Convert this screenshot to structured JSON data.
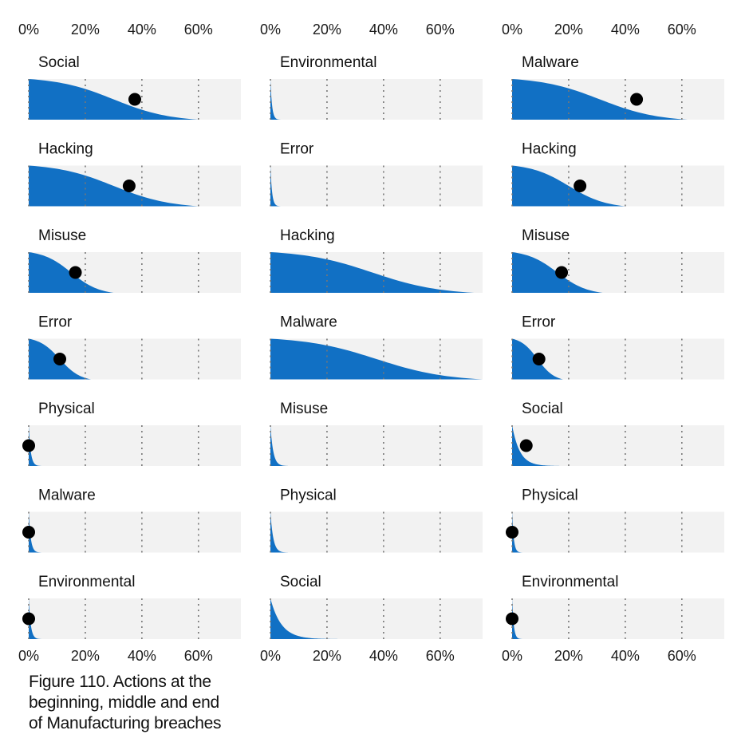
{
  "caption": {
    "lines": [
      "Figure 110. Actions at the",
      "beginning, middle and end",
      "of Manufacturing breaches"
    ]
  },
  "colors": {
    "fill": "#1170c4",
    "track": "#f2f2f2",
    "marker": "#000000",
    "grid": "#777777"
  },
  "chart_data": [
    {
      "type": "area",
      "group": "beginning",
      "x_ticks": [
        "0%",
        "20%",
        "40%",
        "60%"
      ],
      "xlim": [
        0,
        0.75
      ],
      "grid": "dotted vertical at 0%, 20%, 40%, 60%",
      "panels": [
        {
          "label": "Social",
          "shape": "plateau",
          "range_high": 0.6,
          "marker": 0.375
        },
        {
          "label": "Hacking",
          "shape": "plateau",
          "range_high": 0.6,
          "marker": 0.355
        },
        {
          "label": "Misuse",
          "shape": "plateau",
          "range_high": 0.3,
          "marker": 0.165
        },
        {
          "label": "Error",
          "shape": "plateau",
          "range_high": 0.22,
          "marker": 0.11
        },
        {
          "label": "Physical",
          "shape": "decay",
          "range_high": 0.05,
          "marker": 0.0
        },
        {
          "label": "Malware",
          "shape": "decay",
          "range_high": 0.05,
          "marker": 0.0
        },
        {
          "label": "Environmental",
          "shape": "decay",
          "range_high": 0.05,
          "marker": 0.0
        }
      ]
    },
    {
      "type": "area",
      "group": "middle",
      "x_ticks": [
        "0%",
        "20%",
        "40%",
        "60%"
      ],
      "xlim": [
        0,
        0.75
      ],
      "grid": "dotted vertical at 0%, 20%, 40%, 60%",
      "panels": [
        {
          "label": "Environmental",
          "shape": "decay",
          "range_high": 0.04,
          "marker": null
        },
        {
          "label": "Error",
          "shape": "decay",
          "range_high": 0.04,
          "marker": null
        },
        {
          "label": "Hacking",
          "shape": "plateau",
          "range_high": 0.72,
          "marker": null
        },
        {
          "label": "Malware",
          "shape": "plateau",
          "range_high": 0.75,
          "marker": null
        },
        {
          "label": "Misuse",
          "shape": "decay",
          "range_high": 0.07,
          "marker": null
        },
        {
          "label": "Physical",
          "shape": "decay",
          "range_high": 0.07,
          "marker": null
        },
        {
          "label": "Social",
          "shape": "decay",
          "range_high": 0.27,
          "marker": null
        }
      ]
    },
    {
      "type": "area",
      "group": "end",
      "x_ticks": [
        "0%",
        "20%",
        "40%",
        "60%"
      ],
      "xlim": [
        0,
        0.75
      ],
      "grid": "dotted vertical at 0%, 20%, 40%, 60%",
      "panels": [
        {
          "label": "Malware",
          "shape": "plateau",
          "range_high": 0.62,
          "marker": 0.44
        },
        {
          "label": "Hacking",
          "shape": "plateau",
          "range_high": 0.4,
          "marker": 0.24
        },
        {
          "label": "Misuse",
          "shape": "plateau",
          "range_high": 0.32,
          "marker": 0.175
        },
        {
          "label": "Error",
          "shape": "plateau",
          "range_high": 0.18,
          "marker": 0.095
        },
        {
          "label": "Social",
          "shape": "decay",
          "range_high": 0.19,
          "marker": 0.05
        },
        {
          "label": "Physical",
          "shape": "decay",
          "range_high": 0.04,
          "marker": 0.0
        },
        {
          "label": "Environmental",
          "shape": "decay",
          "range_high": 0.04,
          "marker": 0.0
        }
      ]
    }
  ]
}
